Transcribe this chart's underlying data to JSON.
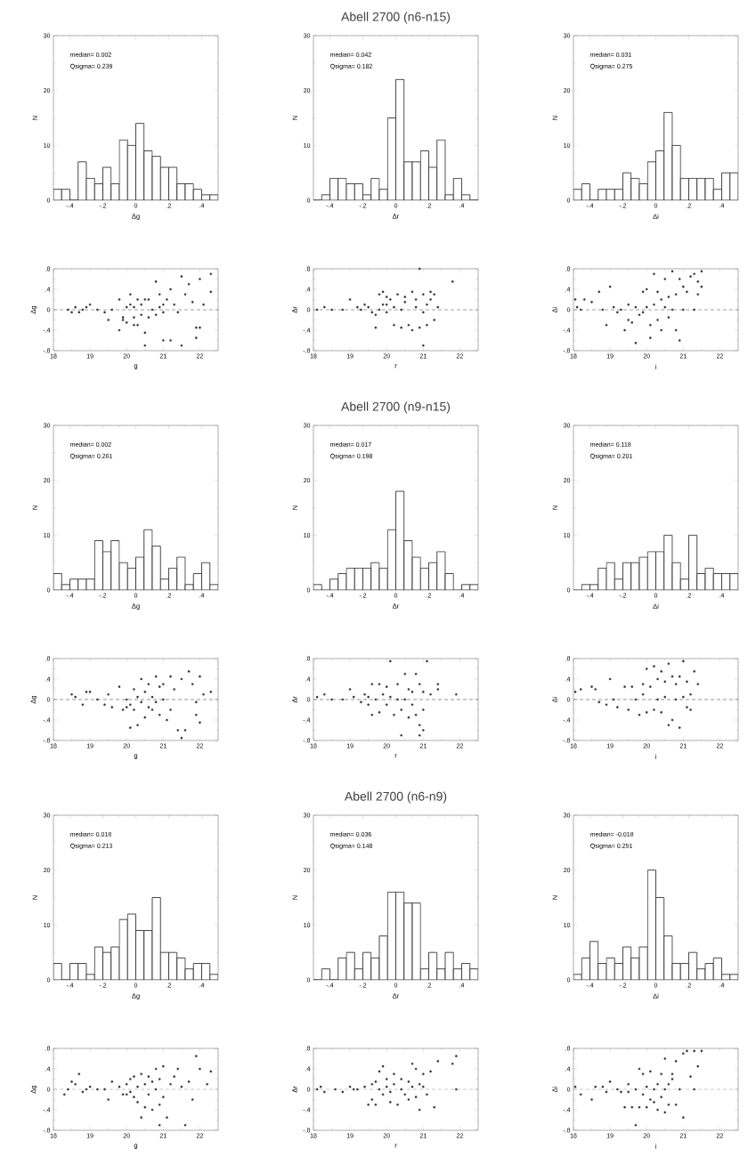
{
  "chart_data": [
    {
      "type": "histogram",
      "xlabel": "Δg",
      "ylabel": "N",
      "bins": [
        -0.5,
        -0.45,
        -0.4,
        -0.35,
        -0.3,
        -0.25,
        -0.2,
        -0.15,
        -0.1,
        -0.05,
        0,
        0.05,
        0.1,
        0.15,
        0.2,
        0.25,
        0.3,
        0.35,
        0.4,
        0.45,
        0.5
      ],
      "values": [
        2,
        2,
        0,
        7,
        4,
        3,
        6,
        3,
        11,
        10,
        14,
        9,
        8,
        6,
        6,
        3,
        3,
        2,
        1,
        1
      ],
      "color": "#333333",
      "xlim": [
        -0.5,
        0.5
      ],
      "ylim": [
        0,
        30
      ],
      "xticks": [
        {
          "value": -0.4,
          "label": "-.4"
        },
        {
          "value": -0.2,
          "label": "-.2"
        },
        0,
        {
          "value": 0.2,
          "label": ".2"
        },
        {
          "value": 0.4,
          "label": ".4"
        }
      ],
      "yticks": [
        0,
        10,
        20,
        30
      ],
      "annotations": [
        "median= 0.002",
        "Qsigma= 0.239"
      ]
    },
    {
      "type": "histogram",
      "title": "Abell 2700 (n6-n15)",
      "xlabel": "Δr",
      "ylabel": "N",
      "bins": [
        -0.5,
        -0.45,
        -0.4,
        -0.35,
        -0.3,
        -0.25,
        -0.2,
        -0.15,
        -0.1,
        -0.05,
        0,
        0.05,
        0.1,
        0.15,
        0.2,
        0.25,
        0.3,
        0.35,
        0.4,
        0.45,
        0.5
      ],
      "values": [
        0,
        1,
        4,
        4,
        3,
        3,
        1,
        4,
        2,
        15,
        22,
        7,
        7,
        9,
        6,
        11,
        1,
        4,
        1,
        0
      ],
      "color": "#333333",
      "xlim": [
        -0.5,
        0.5
      ],
      "ylim": [
        0,
        30
      ],
      "xticks": [
        {
          "value": -0.4,
          "label": "-.4"
        },
        {
          "value": -0.2,
          "label": "-.2"
        },
        0,
        {
          "value": 0.2,
          "label": ".2"
        },
        {
          "value": 0.4,
          "label": ".4"
        }
      ],
      "yticks": [
        0,
        10,
        20,
        30
      ],
      "annotations": [
        "median= 0.042",
        "Qsigma= 0.182"
      ]
    },
    {
      "type": "histogram",
      "xlabel": "Δi",
      "ylabel": "N",
      "bins": [
        -0.5,
        -0.45,
        -0.4,
        -0.35,
        -0.3,
        -0.25,
        -0.2,
        -0.15,
        -0.1,
        -0.05,
        0,
        0.05,
        0.1,
        0.15,
        0.2,
        0.25,
        0.3,
        0.35,
        0.4,
        0.45,
        0.5
      ],
      "values": [
        2,
        3,
        0,
        2,
        2,
        2,
        5,
        4,
        3,
        7,
        9,
        16,
        10,
        4,
        4,
        4,
        4,
        2,
        5,
        5
      ],
      "color": "#333333",
      "xlim": [
        -0.5,
        0.5
      ],
      "ylim": [
        0,
        30
      ],
      "xticks": [
        {
          "value": -0.4,
          "label": "-.4"
        },
        {
          "value": -0.2,
          "label": "-.2"
        },
        0,
        {
          "value": 0.2,
          "label": ".2"
        },
        {
          "value": 0.4,
          "label": ".4"
        }
      ],
      "yticks": [
        0,
        10,
        20,
        30
      ],
      "annotations": [
        "median= 0.031",
        "Qsigma= 0.275"
      ]
    },
    {
      "type": "scatter",
      "xlabel": "g",
      "ylabel": "Δg",
      "x": [
        18.4,
        18.5,
        18.6,
        18.7,
        18.8,
        18.9,
        19.0,
        19.2,
        19.4,
        19.5,
        19.6,
        19.8,
        19.8,
        19.9,
        20.0,
        20.0,
        20.1,
        20.1,
        20.2,
        20.2,
        20.3,
        20.3,
        20.4,
        20.4,
        20.5,
        20.5,
        20.6,
        20.6,
        20.7,
        20.8,
        20.8,
        20.9,
        20.9,
        21.0,
        21.0,
        21.0,
        21.1,
        21.2,
        21.2,
        21.3,
        21.4,
        21.5,
        21.5,
        21.6,
        21.8,
        21.9,
        22.0,
        22.0,
        22.1,
        22.3,
        22.3,
        21.9,
        20.5,
        19.9,
        21.7,
        20.2
      ],
      "values": [
        0,
        -0.05,
        0.05,
        -0.05,
        0,
        0.05,
        0.1,
        0,
        -0.05,
        -0.2,
        0,
        0.2,
        -0.4,
        -0.15,
        0.05,
        -0.25,
        0.3,
        0.1,
        -0.3,
        0.05,
        0.2,
        -0.3,
        0.1,
        -0.1,
        -0.45,
        0.2,
        0.2,
        -0.15,
        0,
        -0.1,
        0.55,
        0.3,
        0.05,
        0.1,
        -0.05,
        -0.6,
        0.2,
        0.4,
        -0.6,
        0.1,
        -0.05,
        0.65,
        -0.7,
        0.3,
        0.15,
        -0.35,
        -0.35,
        0.6,
        0.1,
        0.35,
        0.7,
        -0.55,
        -0.7,
        -0.2,
        0.5,
        -0.15
      ],
      "color": "#333333",
      "marker": "circle",
      "xlim": [
        18,
        22.5
      ],
      "ylim": [
        -0.8,
        0.8
      ],
      "xticks": [
        18,
        19,
        20,
        21,
        22
      ],
      "yticks": [
        {
          "value": -0.8,
          "label": "-.8"
        },
        {
          "value": -0.4,
          "label": "-.4"
        },
        0,
        {
          "value": 0.4,
          "label": ".4"
        },
        {
          "value": 0.8,
          "label": ".8"
        }
      ],
      "ref_lines": [
        {
          "axis": "y",
          "value": 0,
          "line_style": "dashed"
        }
      ]
    },
    {
      "type": "scatter",
      "xlabel": "r",
      "ylabel": "Δr",
      "x": [
        18.1,
        18.3,
        18.5,
        18.8,
        19.0,
        19.2,
        19.3,
        19.5,
        19.6,
        19.7,
        19.7,
        19.8,
        19.8,
        19.9,
        19.9,
        20.0,
        20.0,
        20.1,
        20.2,
        20.2,
        20.3,
        20.4,
        20.4,
        20.5,
        20.5,
        20.6,
        20.7,
        20.7,
        20.8,
        20.8,
        20.9,
        20.9,
        21.0,
        21.0,
        21.0,
        21.1,
        21.1,
        21.2,
        21.2,
        21.3,
        21.3,
        21.4,
        21.8,
        20.0,
        19.4
      ],
      "values": [
        0,
        0.05,
        0,
        0,
        0.2,
        0.05,
        0,
        0.05,
        -0.05,
        -0.1,
        -0.35,
        0.3,
        0,
        0.35,
        0.1,
        -0.05,
        0.25,
        0.2,
        -0.3,
        0.05,
        0.3,
        -0.35,
        0,
        0.15,
        0.25,
        -0.3,
        0.35,
        -0.4,
        0.2,
        0.05,
        0.8,
        -0.35,
        0.3,
        -0.05,
        -0.7,
        0.1,
        -0.3,
        0.35,
        0.2,
        -0.2,
        0.3,
        0.05,
        0.55,
        0.1,
        0.1
      ],
      "color": "#333333",
      "marker": "circle",
      "xlim": [
        18,
        22.5
      ],
      "ylim": [
        -0.8,
        0.8
      ],
      "xticks": [
        18,
        19,
        20,
        21,
        22
      ],
      "yticks": [
        {
          "value": -0.8,
          "label": "-.8"
        },
        {
          "value": -0.4,
          "label": "-.4"
        },
        0,
        {
          "value": 0.4,
          "label": ".4"
        },
        {
          "value": 0.8,
          "label": ".8"
        }
      ],
      "ref_lines": [
        {
          "axis": "y",
          "value": 0,
          "line_style": "dashed"
        }
      ]
    },
    {
      "type": "scatter",
      "xlabel": "i",
      "ylabel": "Δi",
      "x": [
        18.05,
        18.1,
        18.2,
        18.3,
        18.5,
        18.7,
        18.8,
        18.9,
        19.0,
        19.1,
        19.2,
        19.3,
        19.4,
        19.5,
        19.5,
        19.6,
        19.7,
        19.7,
        19.8,
        19.9,
        19.9,
        20.0,
        20.0,
        20.1,
        20.1,
        20.2,
        20.2,
        20.3,
        20.3,
        20.4,
        20.4,
        20.5,
        20.5,
        20.6,
        20.6,
        20.7,
        20.7,
        20.8,
        20.8,
        20.9,
        20.9,
        21.0,
        21.0,
        21.1,
        21.2,
        21.3,
        21.4,
        21.5,
        21.5,
        21.4,
        21.3
      ],
      "values": [
        0.2,
        0.05,
        0,
        0.2,
        0.15,
        0.35,
        0,
        -0.3,
        0.45,
        0.05,
        -0.05,
        0,
        -0.4,
        0.1,
        -0.2,
        -0.25,
        0.05,
        -0.65,
        -0.1,
        0.35,
        -0.05,
        0.4,
        0.05,
        -0.55,
        -0.3,
        0.7,
        0.1,
        0.35,
        -0.2,
        0.2,
        -0.4,
        0.6,
        0.05,
        0.25,
        -0.15,
        0.75,
        0,
        -0.4,
        0.3,
        0.6,
        -0.6,
        0.45,
        0,
        0.35,
        0.65,
        0.7,
        0.55,
        0.75,
        0.45,
        0.3,
        0
      ],
      "color": "#333333",
      "marker": "circle",
      "xlim": [
        18,
        22.5
      ],
      "ylim": [
        -0.8,
        0.8
      ],
      "xticks": [
        18,
        19,
        20,
        21,
        22
      ],
      "yticks": [
        {
          "value": -0.8,
          "label": "-.8"
        },
        {
          "value": -0.4,
          "label": "-.4"
        },
        0,
        {
          "value": 0.4,
          "label": ".4"
        },
        {
          "value": 0.8,
          "label": ".8"
        }
      ],
      "ref_lines": [
        {
          "axis": "y",
          "value": 0,
          "line_style": "dashed"
        }
      ]
    },
    {
      "type": "histogram",
      "xlabel": "Δg",
      "ylabel": "N",
      "bins": [
        -0.5,
        -0.45,
        -0.4,
        -0.35,
        -0.3,
        -0.25,
        -0.2,
        -0.15,
        -0.1,
        -0.05,
        0,
        0.05,
        0.1,
        0.15,
        0.2,
        0.25,
        0.3,
        0.35,
        0.4,
        0.45,
        0.5
      ],
      "values": [
        3,
        1,
        2,
        2,
        2,
        9,
        7,
        9,
        5,
        4,
        6,
        11,
        8,
        2,
        4,
        6,
        1,
        3,
        5,
        1
      ],
      "color": "#333333",
      "xlim": [
        -0.5,
        0.5
      ],
      "ylim": [
        0,
        30
      ],
      "xticks": [
        {
          "value": -0.4,
          "label": "-.4"
        },
        {
          "value": -0.2,
          "label": "-.2"
        },
        0,
        {
          "value": 0.2,
          "label": ".2"
        },
        {
          "value": 0.4,
          "label": ".4"
        }
      ],
      "yticks": [
        0,
        10,
        20,
        30
      ],
      "annotations": [
        "median= 0.002",
        "Qsigma= 0.261"
      ]
    },
    {
      "type": "histogram",
      "title": "Abell 2700 (n9-n15)",
      "xlabel": "Δr",
      "ylabel": "N",
      "bins": [
        -0.5,
        -0.45,
        -0.4,
        -0.35,
        -0.3,
        -0.25,
        -0.2,
        -0.15,
        -0.1,
        -0.05,
        0,
        0.05,
        0.1,
        0.15,
        0.2,
        0.25,
        0.3,
        0.35,
        0.4,
        0.45,
        0.5
      ],
      "values": [
        1,
        0,
        2,
        3,
        4,
        4,
        4,
        5,
        4,
        11,
        18,
        9,
        6,
        4,
        5,
        7,
        3,
        0,
        1,
        1
      ],
      "color": "#333333",
      "xlim": [
        -0.5,
        0.5
      ],
      "ylim": [
        0,
        30
      ],
      "xticks": [
        {
          "value": -0.4,
          "label": "-.4"
        },
        {
          "value": -0.2,
          "label": "-.2"
        },
        0,
        {
          "value": 0.2,
          "label": ".2"
        },
        {
          "value": 0.4,
          "label": ".4"
        }
      ],
      "yticks": [
        0,
        10,
        20,
        30
      ],
      "annotations": [
        "median= 0.017",
        "Qsigma= 0.198"
      ]
    },
    {
      "type": "histogram",
      "xlabel": "Δi",
      "ylabel": "N",
      "bins": [
        -0.5,
        -0.45,
        -0.4,
        -0.35,
        -0.3,
        -0.25,
        -0.2,
        -0.15,
        -0.1,
        -0.05,
        0,
        0.05,
        0.1,
        0.15,
        0.2,
        0.25,
        0.3,
        0.35,
        0.4,
        0.45,
        0.5
      ],
      "values": [
        0,
        1,
        1,
        4,
        5,
        2,
        5,
        5,
        6,
        7,
        7,
        10,
        5,
        2,
        10,
        3,
        4,
        3,
        3,
        3
      ],
      "color": "#333333",
      "xlim": [
        -0.5,
        0.5
      ],
      "ylim": [
        0,
        30
      ],
      "xticks": [
        {
          "value": -0.4,
          "label": "-.4"
        },
        {
          "value": -0.2,
          "label": "-.2"
        },
        0,
        {
          "value": 0.2,
          "label": ".2"
        },
        {
          "value": 0.4,
          "label": ".4"
        }
      ],
      "yticks": [
        0,
        10,
        20,
        30
      ],
      "annotations": [
        "median= 0.118",
        "Qsigma= 0.201"
      ]
    },
    {
      "type": "scatter",
      "xlabel": "g",
      "ylabel": "Δg",
      "x": [
        18.5,
        18.6,
        18.8,
        18.9,
        19.0,
        19.2,
        19.4,
        19.5,
        19.6,
        19.8,
        19.9,
        20.0,
        20.1,
        20.1,
        20.2,
        20.2,
        20.3,
        20.3,
        20.4,
        20.4,
        20.5,
        20.5,
        20.6,
        20.6,
        20.7,
        20.7,
        20.8,
        20.8,
        20.9,
        20.9,
        21.0,
        21.0,
        21.1,
        21.2,
        21.2,
        21.3,
        21.4,
        21.5,
        21.5,
        21.6,
        21.7,
        21.8,
        21.9,
        22.0,
        22.0,
        22.1,
        22.3,
        21.9,
        20.0
      ],
      "values": [
        0.1,
        0.05,
        -0.1,
        0.15,
        0.15,
        0,
        -0.1,
        0.1,
        -0.15,
        0.25,
        -0.2,
        0,
        -0.1,
        -0.55,
        0.2,
        -0.2,
        -0.5,
        0.05,
        0.4,
        -0.05,
        -0.35,
        0.15,
        0.3,
        -0.15,
        -0.2,
        0.05,
        0.45,
        -0.05,
        0.25,
        -0.3,
        0.3,
        0,
        -0.4,
        0.45,
        -0.2,
        0.2,
        -0.6,
        -0.75,
        0.4,
        -0.6,
        0.55,
        0.3,
        -0.05,
        0.45,
        -0.45,
        0.1,
        0.15,
        -0.3,
        -0.15
      ],
      "color": "#333333",
      "marker": "circle",
      "xlim": [
        18,
        22.5
      ],
      "ylim": [
        -0.8,
        0.8
      ],
      "xticks": [
        18,
        19,
        20,
        21,
        22
      ],
      "yticks": [
        {
          "value": -0.8,
          "label": "-.8"
        },
        {
          "value": -0.4,
          "label": "-.4"
        },
        0,
        {
          "value": 0.4,
          "label": ".4"
        },
        {
          "value": 0.8,
          "label": ".8"
        }
      ],
      "ref_lines": [
        {
          "axis": "y",
          "value": 0,
          "line_style": "dashed"
        }
      ]
    },
    {
      "type": "scatter",
      "xlabel": "r",
      "ylabel": "Δr",
      "x": [
        18.1,
        18.3,
        18.5,
        18.8,
        19.0,
        19.1,
        19.3,
        19.4,
        19.5,
        19.6,
        19.6,
        19.7,
        19.8,
        19.8,
        19.9,
        20.0,
        20.0,
        20.1,
        20.1,
        20.2,
        20.3,
        20.3,
        20.4,
        20.4,
        20.5,
        20.5,
        20.6,
        20.6,
        20.7,
        20.7,
        20.8,
        20.8,
        20.9,
        20.9,
        21.0,
        21.0,
        21.0,
        21.1,
        21.2,
        21.4,
        21.4,
        21.9,
        20.9,
        19.5
      ],
      "values": [
        0.05,
        0.1,
        0,
        0,
        0.2,
        0.05,
        -0.05,
        0.1,
        -0.1,
        0.3,
        -0.3,
        0,
        0.3,
        -0.25,
        0.1,
        0.25,
        -0.1,
        0.75,
        0.05,
        -0.3,
        0.3,
        0,
        -0.2,
        -0.7,
        0.5,
        0,
        -0.35,
        0.2,
        0.15,
        -0.1,
        0.5,
        -0.3,
        0.3,
        -0.5,
        0.15,
        -0.2,
        -0.6,
        0.75,
        0.1,
        0.3,
        0.2,
        0.1,
        -0.7,
        0.05
      ],
      "color": "#333333",
      "marker": "circle",
      "xlim": [
        18,
        22.5
      ],
      "ylim": [
        -0.8,
        0.8
      ],
      "xticks": [
        18,
        19,
        20,
        21,
        22
      ],
      "yticks": [
        {
          "value": -0.8,
          "label": "-.8"
        },
        {
          "value": -0.4,
          "label": "-.4"
        },
        0,
        {
          "value": 0.4,
          "label": ".4"
        },
        {
          "value": 0.8,
          "label": ".8"
        }
      ],
      "ref_lines": [
        {
          "axis": "y",
          "value": 0,
          "line_style": "dashed"
        }
      ]
    },
    {
      "type": "scatter",
      "xlabel": "i",
      "ylabel": "Δi",
      "x": [
        18.05,
        18.2,
        18.5,
        18.6,
        18.7,
        18.9,
        19.0,
        19.1,
        19.2,
        19.4,
        19.5,
        19.6,
        19.7,
        19.8,
        19.9,
        19.9,
        20.0,
        20.0,
        20.1,
        20.2,
        20.3,
        20.3,
        20.4,
        20.4,
        20.5,
        20.5,
        20.6,
        20.6,
        20.7,
        20.7,
        20.8,
        20.8,
        20.9,
        20.9,
        21.0,
        21.0,
        21.1,
        21.1,
        21.2,
        21.3,
        21.4,
        21.2,
        20.2
      ],
      "values": [
        0.15,
        0.2,
        0.25,
        0.2,
        -0.05,
        -0.1,
        0.4,
        0,
        -0.15,
        0.25,
        -0.2,
        0.25,
        0,
        -0.3,
        0.3,
        0.1,
        0.6,
        -0.25,
        0.25,
        -0.2,
        0.4,
        0,
        0.55,
        -0.25,
        0.35,
        0.05,
        0.7,
        -0.5,
        0.45,
        -0.4,
        0.3,
        0,
        -0.55,
        0.45,
        0.05,
        0.75,
        0.35,
        -0.15,
        0.1,
        0.55,
        0.3,
        -0.2,
        0.65
      ],
      "color": "#333333",
      "marker": "circle",
      "xlim": [
        18,
        22.5
      ],
      "ylim": [
        -0.8,
        0.8
      ],
      "xticks": [
        18,
        19,
        20,
        21,
        22
      ],
      "yticks": [
        {
          "value": -0.8,
          "label": "-.8"
        },
        {
          "value": -0.4,
          "label": "-.4"
        },
        0,
        {
          "value": 0.4,
          "label": ".4"
        },
        {
          "value": 0.8,
          "label": ".8"
        }
      ],
      "ref_lines": [
        {
          "axis": "y",
          "value": 0,
          "line_style": "dashed"
        }
      ]
    },
    {
      "type": "histogram",
      "xlabel": "Δg",
      "ylabel": "N",
      "bins": [
        -0.5,
        -0.45,
        -0.4,
        -0.35,
        -0.3,
        -0.25,
        -0.2,
        -0.15,
        -0.1,
        -0.05,
        0,
        0.05,
        0.1,
        0.15,
        0.2,
        0.25,
        0.3,
        0.35,
        0.4,
        0.45,
        0.5
      ],
      "values": [
        3,
        0,
        3,
        3,
        1,
        6,
        5,
        6,
        11,
        12,
        9,
        9,
        15,
        5,
        5,
        4,
        2,
        3,
        3,
        1
      ],
      "color": "#333333",
      "xlim": [
        -0.5,
        0.5
      ],
      "ylim": [
        0,
        30
      ],
      "xticks": [
        {
          "value": -0.4,
          "label": "-.4"
        },
        {
          "value": -0.2,
          "label": "-.2"
        },
        0,
        {
          "value": 0.2,
          "label": ".2"
        },
        {
          "value": 0.4,
          "label": ".4"
        }
      ],
      "yticks": [
        0,
        10,
        20,
        30
      ],
      "annotations": [
        "median= 0.018",
        "Qsigma= 0.213"
      ]
    },
    {
      "type": "histogram",
      "title": "Abell 2700 (n6-n9)",
      "xlabel": "Δr",
      "ylabel": "N",
      "bins": [
        -0.5,
        -0.45,
        -0.4,
        -0.35,
        -0.3,
        -0.25,
        -0.2,
        -0.15,
        -0.1,
        -0.05,
        0,
        0.05,
        0.1,
        0.15,
        0.2,
        0.25,
        0.3,
        0.35,
        0.4,
        0.45,
        0.5
      ],
      "values": [
        0,
        2,
        0,
        4,
        5,
        2,
        5,
        4,
        8,
        16,
        16,
        14,
        14,
        2,
        5,
        2,
        5,
        2,
        3,
        2
      ],
      "color": "#333333",
      "xlim": [
        -0.5,
        0.5
      ],
      "ylim": [
        0,
        30
      ],
      "xticks": [
        {
          "value": -0.4,
          "label": "-.4"
        },
        {
          "value": -0.2,
          "label": "-.2"
        },
        0,
        {
          "value": 0.2,
          "label": ".2"
        },
        {
          "value": 0.4,
          "label": ".4"
        }
      ],
      "yticks": [
        0,
        10,
        20,
        30
      ],
      "annotations": [
        "median= 0.036",
        "Qsigma= 0.148"
      ]
    },
    {
      "type": "histogram",
      "xlabel": "Δi",
      "ylabel": "N",
      "bins": [
        -0.5,
        -0.45,
        -0.4,
        -0.35,
        -0.3,
        -0.25,
        -0.2,
        -0.15,
        -0.1,
        -0.05,
        0,
        0.05,
        0.1,
        0.15,
        0.2,
        0.25,
        0.3,
        0.35,
        0.4,
        0.45,
        0.5
      ],
      "values": [
        1,
        4,
        7,
        3,
        4,
        3,
        6,
        4,
        6,
        20,
        15,
        8,
        3,
        3,
        5,
        2,
        3,
        4,
        1,
        1
      ],
      "color": "#333333",
      "xlim": [
        -0.5,
        0.5
      ],
      "ylim": [
        0,
        30
      ],
      "xticks": [
        {
          "value": -0.4,
          "label": "-.4"
        },
        {
          "value": -0.2,
          "label": "-.2"
        },
        0,
        {
          "value": 0.2,
          "label": ".2"
        },
        {
          "value": 0.4,
          "label": ".4"
        }
      ],
      "yticks": [
        0,
        10,
        20,
        30
      ],
      "annotations": [
        "median= -0.018",
        "Qsigma= 0.251"
      ]
    },
    {
      "type": "scatter",
      "xlabel": "g",
      "ylabel": "Δg",
      "x": [
        18.3,
        18.4,
        18.5,
        18.6,
        18.7,
        18.8,
        18.9,
        19.0,
        19.2,
        19.4,
        19.5,
        19.6,
        19.8,
        19.9,
        20.0,
        20.0,
        20.1,
        20.1,
        20.2,
        20.2,
        20.3,
        20.3,
        20.4,
        20.4,
        20.5,
        20.5,
        20.6,
        20.6,
        20.7,
        20.7,
        20.8,
        20.8,
        20.9,
        20.9,
        21.0,
        21.0,
        21.1,
        21.2,
        21.3,
        21.4,
        21.5,
        21.6,
        21.7,
        21.8,
        21.9,
        22.0,
        22.2,
        22.3,
        20.9
      ],
      "values": [
        -0.1,
        0,
        0.15,
        0.1,
        0.3,
        -0.05,
        0,
        0.05,
        0,
        0,
        -0.2,
        0.15,
        0.05,
        -0.1,
        0.1,
        -0.1,
        0.2,
        -0.05,
        0.25,
        -0.15,
        0.05,
        -0.25,
        0.3,
        -0.55,
        -0.35,
        0.1,
        0.25,
        -0.1,
        0.15,
        -0.4,
        0.4,
        0,
        -0.3,
        0.2,
        0.45,
        -0.15,
        -0.55,
        0.1,
        0.25,
        0.4,
        0.05,
        -0.7,
        0.15,
        -0.2,
        0.65,
        0.4,
        0.1,
        0.35,
        -0.7
      ],
      "color": "#333333",
      "marker": "circle",
      "xlim": [
        18,
        22.5
      ],
      "ylim": [
        -0.8,
        0.8
      ],
      "xticks": [
        18,
        19,
        20,
        21,
        22
      ],
      "yticks": [
        {
          "value": -0.8,
          "label": "-.8"
        },
        {
          "value": -0.4,
          "label": "-.4"
        },
        0,
        {
          "value": 0.4,
          "label": ".4"
        },
        {
          "value": 0.8,
          "label": ".8"
        }
      ],
      "ref_lines": [
        {
          "axis": "y",
          "value": 0,
          "line_style": "dashed"
        }
      ]
    },
    {
      "type": "scatter",
      "xlabel": "r",
      "ylabel": "Δr",
      "x": [
        18.1,
        18.2,
        18.3,
        18.6,
        18.8,
        19.0,
        19.2,
        19.4,
        19.5,
        19.6,
        19.6,
        19.7,
        19.7,
        19.8,
        19.8,
        19.9,
        19.9,
        20.0,
        20.0,
        20.1,
        20.1,
        20.2,
        20.2,
        20.3,
        20.4,
        20.4,
        20.5,
        20.6,
        20.6,
        20.7,
        20.7,
        20.8,
        20.8,
        20.9,
        20.9,
        21.0,
        21.0,
        21.1,
        21.2,
        21.3,
        21.4,
        21.8,
        21.9,
        21.9,
        19.1
      ],
      "values": [
        0,
        0.05,
        -0.05,
        0,
        -0.05,
        0.05,
        0,
        0.05,
        -0.3,
        0.1,
        -0.2,
        0.15,
        -0.3,
        0.35,
        0,
        0.45,
        -0.1,
        0.2,
        0.05,
        -0.05,
        -0.25,
        0.1,
        0.3,
        -0.3,
        0,
        0.2,
        -0.1,
        0.15,
        -0.2,
        0.5,
        0.05,
        0.4,
        -0.15,
        0.1,
        -0.4,
        0.05,
        0.3,
        -0.1,
        0.35,
        -0.35,
        0.55,
        0.5,
        0.65,
        0,
        0
      ],
      "color": "#333333",
      "marker": "circle",
      "xlim": [
        18,
        22.5
      ],
      "ylim": [
        -0.8,
        0.8
      ],
      "xticks": [
        18,
        19,
        20,
        21,
        22
      ],
      "yticks": [
        {
          "value": -0.8,
          "label": "-.8"
        },
        {
          "value": -0.4,
          "label": "-.4"
        },
        0,
        {
          "value": 0.4,
          "label": ".4"
        },
        {
          "value": 0.8,
          "label": ".8"
        }
      ],
      "ref_lines": [
        {
          "axis": "y",
          "value": 0,
          "line_style": "dashed"
        }
      ]
    },
    {
      "type": "scatter",
      "xlabel": "i",
      "ylabel": "Δi",
      "x": [
        18.05,
        18.2,
        18.5,
        18.6,
        18.8,
        18.9,
        19.0,
        19.2,
        19.3,
        19.4,
        19.5,
        19.5,
        19.6,
        19.7,
        19.7,
        19.8,
        19.8,
        19.9,
        19.9,
        20.0,
        20.0,
        20.1,
        20.1,
        20.2,
        20.2,
        20.3,
        20.3,
        20.4,
        20.4,
        20.5,
        20.5,
        20.5,
        20.6,
        20.6,
        20.7,
        20.7,
        20.8,
        20.8,
        20.9,
        21.0,
        21.0,
        21.1,
        21.2,
        21.3,
        21.4,
        21.5,
        21.3
      ],
      "values": [
        0.05,
        -0.1,
        -0.2,
        0.05,
        0.05,
        -0.05,
        0.15,
        0,
        -0.05,
        -0.35,
        0.1,
        -0.05,
        -0.35,
        -0.7,
        0,
        -0.35,
        0.4,
        0.3,
        -0.1,
        -0.35,
        0.05,
        0.35,
        -0.2,
        -0.25,
        0,
        0.1,
        -0.4,
        -0.15,
        0.3,
        0.6,
        -0.45,
        0,
        -0.3,
        0.1,
        0.3,
        0.2,
        0.55,
        -0.3,
        0,
        -0.55,
        0.7,
        0.75,
        0.25,
        0.75,
        0.45,
        0.75,
        0
      ],
      "color": "#333333",
      "marker": "circle",
      "xlim": [
        18,
        22.5
      ],
      "ylim": [
        -0.8,
        0.8
      ],
      "xticks": [
        18,
        19,
        20,
        21,
        22
      ],
      "yticks": [
        {
          "value": -0.8,
          "label": "-.8"
        },
        {
          "value": -0.4,
          "label": "-.4"
        },
        0,
        {
          "value": 0.4,
          "label": ".4"
        },
        {
          "value": 0.8,
          "label": ".8"
        }
      ],
      "ref_lines": [
        {
          "axis": "y",
          "value": 0,
          "line_style": "dashed"
        }
      ]
    }
  ]
}
